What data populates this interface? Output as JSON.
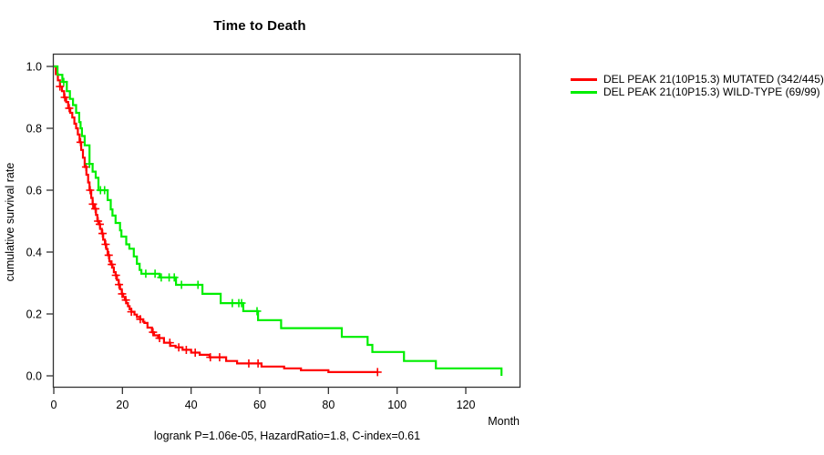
{
  "chart_data": {
    "type": "line",
    "subtype": "kaplan-meier-step",
    "title": "Time to Death",
    "xlabel": "Month",
    "ylabel": "cumulative survival rate",
    "caption": "logrank P=1.06e-05, HazardRatio=1.8, C-index=0.61",
    "stats": {
      "logrank_p": "1.06e-05",
      "hazard_ratio": 1.8,
      "c_index": 0.61
    },
    "xlim": [
      0,
      135
    ],
    "ylim": [
      0.0,
      1.0
    ],
    "xticks": [
      0,
      20,
      40,
      60,
      80,
      100,
      120
    ],
    "yticks": [
      0.0,
      0.2,
      0.4,
      0.6,
      0.8,
      1.0
    ],
    "grid": false,
    "legend_position": "outside-top-right",
    "axis_color": "#333333",
    "series": [
      {
        "name": "DEL PEAK 21(10P15.3) MUTATED (342/445)",
        "color": "#ff0000",
        "events": "342/445",
        "points": [
          [
            0,
            1.0
          ],
          [
            0.6,
            0.975
          ],
          [
            1.2,
            0.955
          ],
          [
            1.8,
            0.935
          ],
          [
            2.4,
            0.92
          ],
          [
            3,
            0.9
          ],
          [
            3.6,
            0.885
          ],
          [
            4.2,
            0.865
          ],
          [
            4.8,
            0.85
          ],
          [
            5.4,
            0.835
          ],
          [
            6,
            0.815
          ],
          [
            6.5,
            0.8
          ],
          [
            7,
            0.78
          ],
          [
            7.5,
            0.755
          ],
          [
            8,
            0.73
          ],
          [
            8.5,
            0.705
          ],
          [
            9,
            0.675
          ],
          [
            9.5,
            0.65
          ],
          [
            10,
            0.625
          ],
          [
            10.4,
            0.6
          ],
          [
            10.9,
            0.575
          ],
          [
            11.3,
            0.555
          ],
          [
            11.8,
            0.54
          ],
          [
            12.3,
            0.52
          ],
          [
            12.7,
            0.5
          ],
          [
            13.1,
            0.49
          ],
          [
            13.5,
            0.475
          ],
          [
            14,
            0.46
          ],
          [
            14.4,
            0.44
          ],
          [
            14.9,
            0.425
          ],
          [
            15.3,
            0.41
          ],
          [
            15.7,
            0.39
          ],
          [
            16.2,
            0.37
          ],
          [
            16.6,
            0.36
          ],
          [
            17.1,
            0.35
          ],
          [
            17.5,
            0.335
          ],
          [
            18,
            0.325
          ],
          [
            18.4,
            0.31
          ],
          [
            18.9,
            0.295
          ],
          [
            19.3,
            0.28
          ],
          [
            19.8,
            0.265
          ],
          [
            20.2,
            0.255
          ],
          [
            20.7,
            0.245
          ],
          [
            21.1,
            0.235
          ],
          [
            21.6,
            0.225
          ],
          [
            22.1,
            0.215
          ],
          [
            22.6,
            0.207
          ],
          [
            23.5,
            0.198
          ],
          [
            24.2,
            0.19
          ],
          [
            25.2,
            0.183
          ],
          [
            26,
            0.175
          ],
          [
            26.4,
            0.171
          ],
          [
            27.3,
            0.156
          ],
          [
            28.6,
            0.141
          ],
          [
            29.2,
            0.131
          ],
          [
            30.4,
            0.122
          ],
          [
            32.1,
            0.107
          ],
          [
            33.9,
            0.097
          ],
          [
            35.5,
            0.092
          ],
          [
            37.5,
            0.084
          ],
          [
            40,
            0.075
          ],
          [
            42.5,
            0.068
          ],
          [
            45.4,
            0.06
          ],
          [
            50.2,
            0.048
          ],
          [
            53.4,
            0.04
          ],
          [
            60.5,
            0.03
          ],
          [
            67.1,
            0.024
          ],
          [
            72,
            0.018
          ],
          [
            80,
            0.012
          ],
          [
            94.5,
            0.012
          ]
        ],
        "censor_months": [
          1.8,
          3.2,
          4.5,
          7.8,
          9.4,
          10.6,
          11.4,
          12.1,
          12.9,
          13.4,
          14.2,
          15.1,
          16.0,
          16.9,
          18.1,
          19.0,
          19.9,
          21.0,
          22.6,
          25.2,
          28.9,
          30.8,
          33.8,
          36.4,
          38.6,
          41.2,
          45.6,
          48.3,
          56.8,
          59.5,
          94.3
        ]
      },
      {
        "name": "DEL PEAK 21(10P15.3) WILD-TYPE (69/99)",
        "color": "#00ee00",
        "events": "69/99",
        "points": [
          [
            0,
            1.0
          ],
          [
            1.1,
            0.973
          ],
          [
            2.5,
            0.95
          ],
          [
            3.8,
            0.92
          ],
          [
            4.7,
            0.895
          ],
          [
            5.6,
            0.875
          ],
          [
            6.5,
            0.85
          ],
          [
            7.4,
            0.82
          ],
          [
            7.8,
            0.8
          ],
          [
            8.2,
            0.775
          ],
          [
            9,
            0.745
          ],
          [
            10.4,
            0.685
          ],
          [
            11.3,
            0.66
          ],
          [
            12.2,
            0.64
          ],
          [
            13,
            0.6
          ],
          [
            15.7,
            0.568
          ],
          [
            16.6,
            0.538
          ],
          [
            17.1,
            0.518
          ],
          [
            18,
            0.494
          ],
          [
            19.3,
            0.47
          ],
          [
            19.7,
            0.45
          ],
          [
            21.1,
            0.425
          ],
          [
            22,
            0.411
          ],
          [
            23.3,
            0.386
          ],
          [
            24.2,
            0.362
          ],
          [
            25,
            0.342
          ],
          [
            25.5,
            0.33
          ],
          [
            30.8,
            0.318
          ],
          [
            35.6,
            0.294
          ],
          [
            43.3,
            0.265
          ],
          [
            48.6,
            0.235
          ],
          [
            55.2,
            0.209
          ],
          [
            59.5,
            0.18
          ],
          [
            66.2,
            0.154
          ],
          [
            83.9,
            0.126
          ],
          [
            91.4,
            0.1
          ],
          [
            92.8,
            0.077
          ],
          [
            102,
            0.048
          ],
          [
            111.3,
            0.024
          ],
          [
            130.4,
            0.0
          ]
        ],
        "censor_months": [
          2.9,
          10.4,
          13.6,
          14.8,
          26.8,
          29.5,
          31.3,
          33.6,
          35.1,
          37.2,
          42.0,
          52.0,
          53.9,
          54.7,
          59.2
        ]
      }
    ]
  }
}
